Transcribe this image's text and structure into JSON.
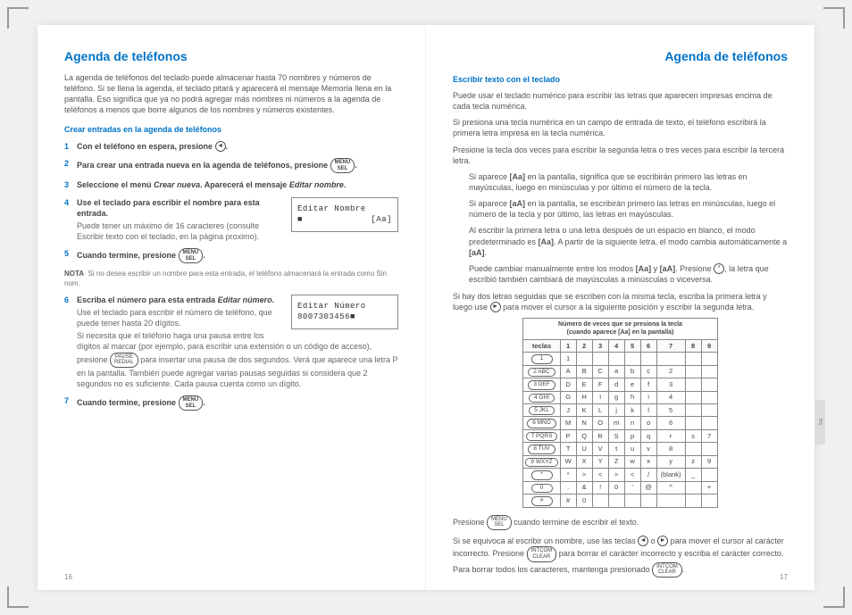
{
  "left": {
    "title": "Agenda de teléfonos",
    "intro": "La agenda de teléfonos del teclado puede almacenar hasta 70 nombres y números de teléfono. Si se llena la agenda, el teclado pitará y aparecerá el mensaje Memoria llena en la pantalla. Eso significa que ya no podrá agregar más nombres ni números a la agenda de teléfonos a menos que borre algunos de los nombres y números existentes.",
    "sub1": "Crear entradas en la agenda de teléfonos",
    "s1": "Con el teléfono en espera, presione",
    "s2": "Para crear una entrada nueva en la agenda de teléfonos, presione",
    "s3a": "Seleccione el menú ",
    "s3b": "Crear nueva",
    "s3c": ". Aparecerá el mensaje ",
    "s3d": "Editar nombre",
    "s4": "Use el teclado para escribir el nombre para esta entrada.",
    "s4sub": "Puede tener un máximo de 16 caracteres (consulte Escribir texto con el teclado, en la página proximo).",
    "s5": "Cuando termine, presione",
    "note": "Si no desea escribir un nombre para esta entrada, el teléfono almacenará la entrada como Sin nom.",
    "s6a": "Escriba el número para esta entrada ",
    "s6b": "Editar número",
    "s6sub1": "Use el teclado para escribir el número de teléfono, que puede tener hasta 20 dígitos.",
    "s6sub2a": "Si necesita que el teléfono haga una pausa entre los dígitos al marcar (por ejemplo, para escribir una extensión o un código de acceso), presione",
    "s6sub2b": "para insertar una pausa de dos segundos. Verá que aparece una letra P en la pantalla. También puede agregar varias pausas seguidas si considera que 2 segundos no es suficiente. Cada pausa cuenta como un dígito.",
    "s7": "Cuando termine, presione",
    "lcd1a": "Editar Nombre",
    "lcd1b": "■",
    "lcd1c": "[Aa]",
    "lcd2a": "Editar Número",
    "lcd2b": "8007303456■",
    "btn_menu_sel_top": "MENU",
    "btn_menu_sel_bot": "SEL",
    "btn_left": "◄",
    "btn_right": "►",
    "btn_pause_top": "PAUSE",
    "btn_pause_bot": "REDIAL",
    "pgnum": "16"
  },
  "right": {
    "title": "Agenda de teléfonos",
    "sub1": "Escribir texto con el teclado",
    "p1": "Puede usar el teclado numérico para escribir las letras que aparecen impresas encima de cada tecla numérica.",
    "p2": "Si presiona una tecla numérica en un campo de entrada de texto, el teléfono escribirá la primera letra impresa en la tecla numérica.",
    "p3": "Presione la tecla dos veces para escribir la segunda letra o tres veces para escribir la tercera letra.",
    "i1a": "Si aparece ",
    "i1b": "[Aa]",
    "i1c": " en la pantalla, significa que se escribirán primero las letras en mayúsculas, luego en minúsculas y por último el número de la tecla.",
    "i2a": "Si aparece ",
    "i2b": "[aA]",
    "i2c": " en la pantalla, se escribirán primero las letras en minúsculas, luego el número de la tecla y por último, las letras en mayúsculas.",
    "i3a": "Al escribir la primera letra o una letra después de un espacio en blanco, el modo predeterminado es ",
    "i3b": "[Aa]",
    "i3c": ". A partir de la siguiente letra, el modo cambia automáticamente a ",
    "i3d": "[aA]",
    "i4a": "Puede cambiar manualmente entre los modos ",
    "i4b": "[Aa]",
    "i4c": " y ",
    "i4d": "[aA]",
    "i4e": ". Presione ",
    "i4f": ", la letra que escribió también cambiará de mayúsculas a minúsculas o viceversa.",
    "p4a": "Si hay dos letras seguidas que se escriben con la misma tecla, escriba la primera letra y luego use ",
    "p4b": " para mover el cursor a la siguiente posición y escribir la segunda letra.",
    "caption1": "Número de veces que se presiona la tecla",
    "caption2": "(cuando aparece [Aa] en la pantalla)",
    "th_teclas": "teclas",
    "cols": [
      "1",
      "2",
      "3",
      "4",
      "5",
      "6",
      "7",
      "8",
      "9"
    ],
    "rows": [
      {
        "k": "1",
        "c": [
          "1",
          "",
          "",
          "",
          "",
          "",
          "",
          "",
          ""
        ]
      },
      {
        "k": "2 ABC",
        "c": [
          "A",
          "B",
          "C",
          "a",
          "b",
          "c",
          "2",
          "",
          ""
        ]
      },
      {
        "k": "3 DEF",
        "c": [
          "D",
          "E",
          "F",
          "d",
          "e",
          "f",
          "3",
          "",
          ""
        ]
      },
      {
        "k": "4 GHI",
        "c": [
          "G",
          "H",
          "I",
          "g",
          "h",
          "i",
          "4",
          "",
          ""
        ]
      },
      {
        "k": "5 JKL",
        "c": [
          "J",
          "K",
          "L",
          "j",
          "k",
          "l",
          "5",
          "",
          ""
        ]
      },
      {
        "k": "6 MNO",
        "c": [
          "M",
          "N",
          "O",
          "m",
          "n",
          "o",
          "6",
          "",
          ""
        ]
      },
      {
        "k": "7 PQRS",
        "c": [
          "P",
          "Q",
          "R",
          "S",
          "p",
          "q",
          "r",
          "s",
          "7"
        ]
      },
      {
        "k": "8 TUV",
        "c": [
          "T",
          "U",
          "V",
          "t",
          "u",
          "v",
          "8",
          "",
          ""
        ]
      },
      {
        "k": "9 WXYZ",
        "c": [
          "W",
          "X",
          "Y",
          "Z",
          "w",
          "x",
          "y",
          "z",
          "9"
        ]
      },
      {
        "k": "*",
        "c": [
          "*",
          ">",
          "<",
          ">",
          "<",
          "/",
          "(blank)",
          "_",
          ""
        ]
      },
      {
        "k": "0",
        "c": [
          ".",
          "&",
          "!",
          "0",
          "'",
          "@",
          "^",
          "",
          "+"
        ]
      },
      {
        "k": "#",
        "c": [
          "#",
          "0",
          "",
          "",
          "",
          "",
          "",
          "",
          ""
        ]
      }
    ],
    "p5a": "Presione ",
    "p5b": " cuando termine de escribir el texto.",
    "p6a": "Si se equivoca al escribir un nombre, use las teclas ",
    "p6b": " o ",
    "p6c": " para mover el cursor al carácter incorrecto. Presione ",
    "p6d": " para borrar el carácter incorrecto y escriba el carácter correcto. Para borrar todos los caracteres, mantenga presionado ",
    "btn_clear_top": "INTCOM",
    "btn_clear_bot": "CLEAR",
    "btn_star": "*",
    "pgnum": "17",
    "sidetab": "es"
  }
}
